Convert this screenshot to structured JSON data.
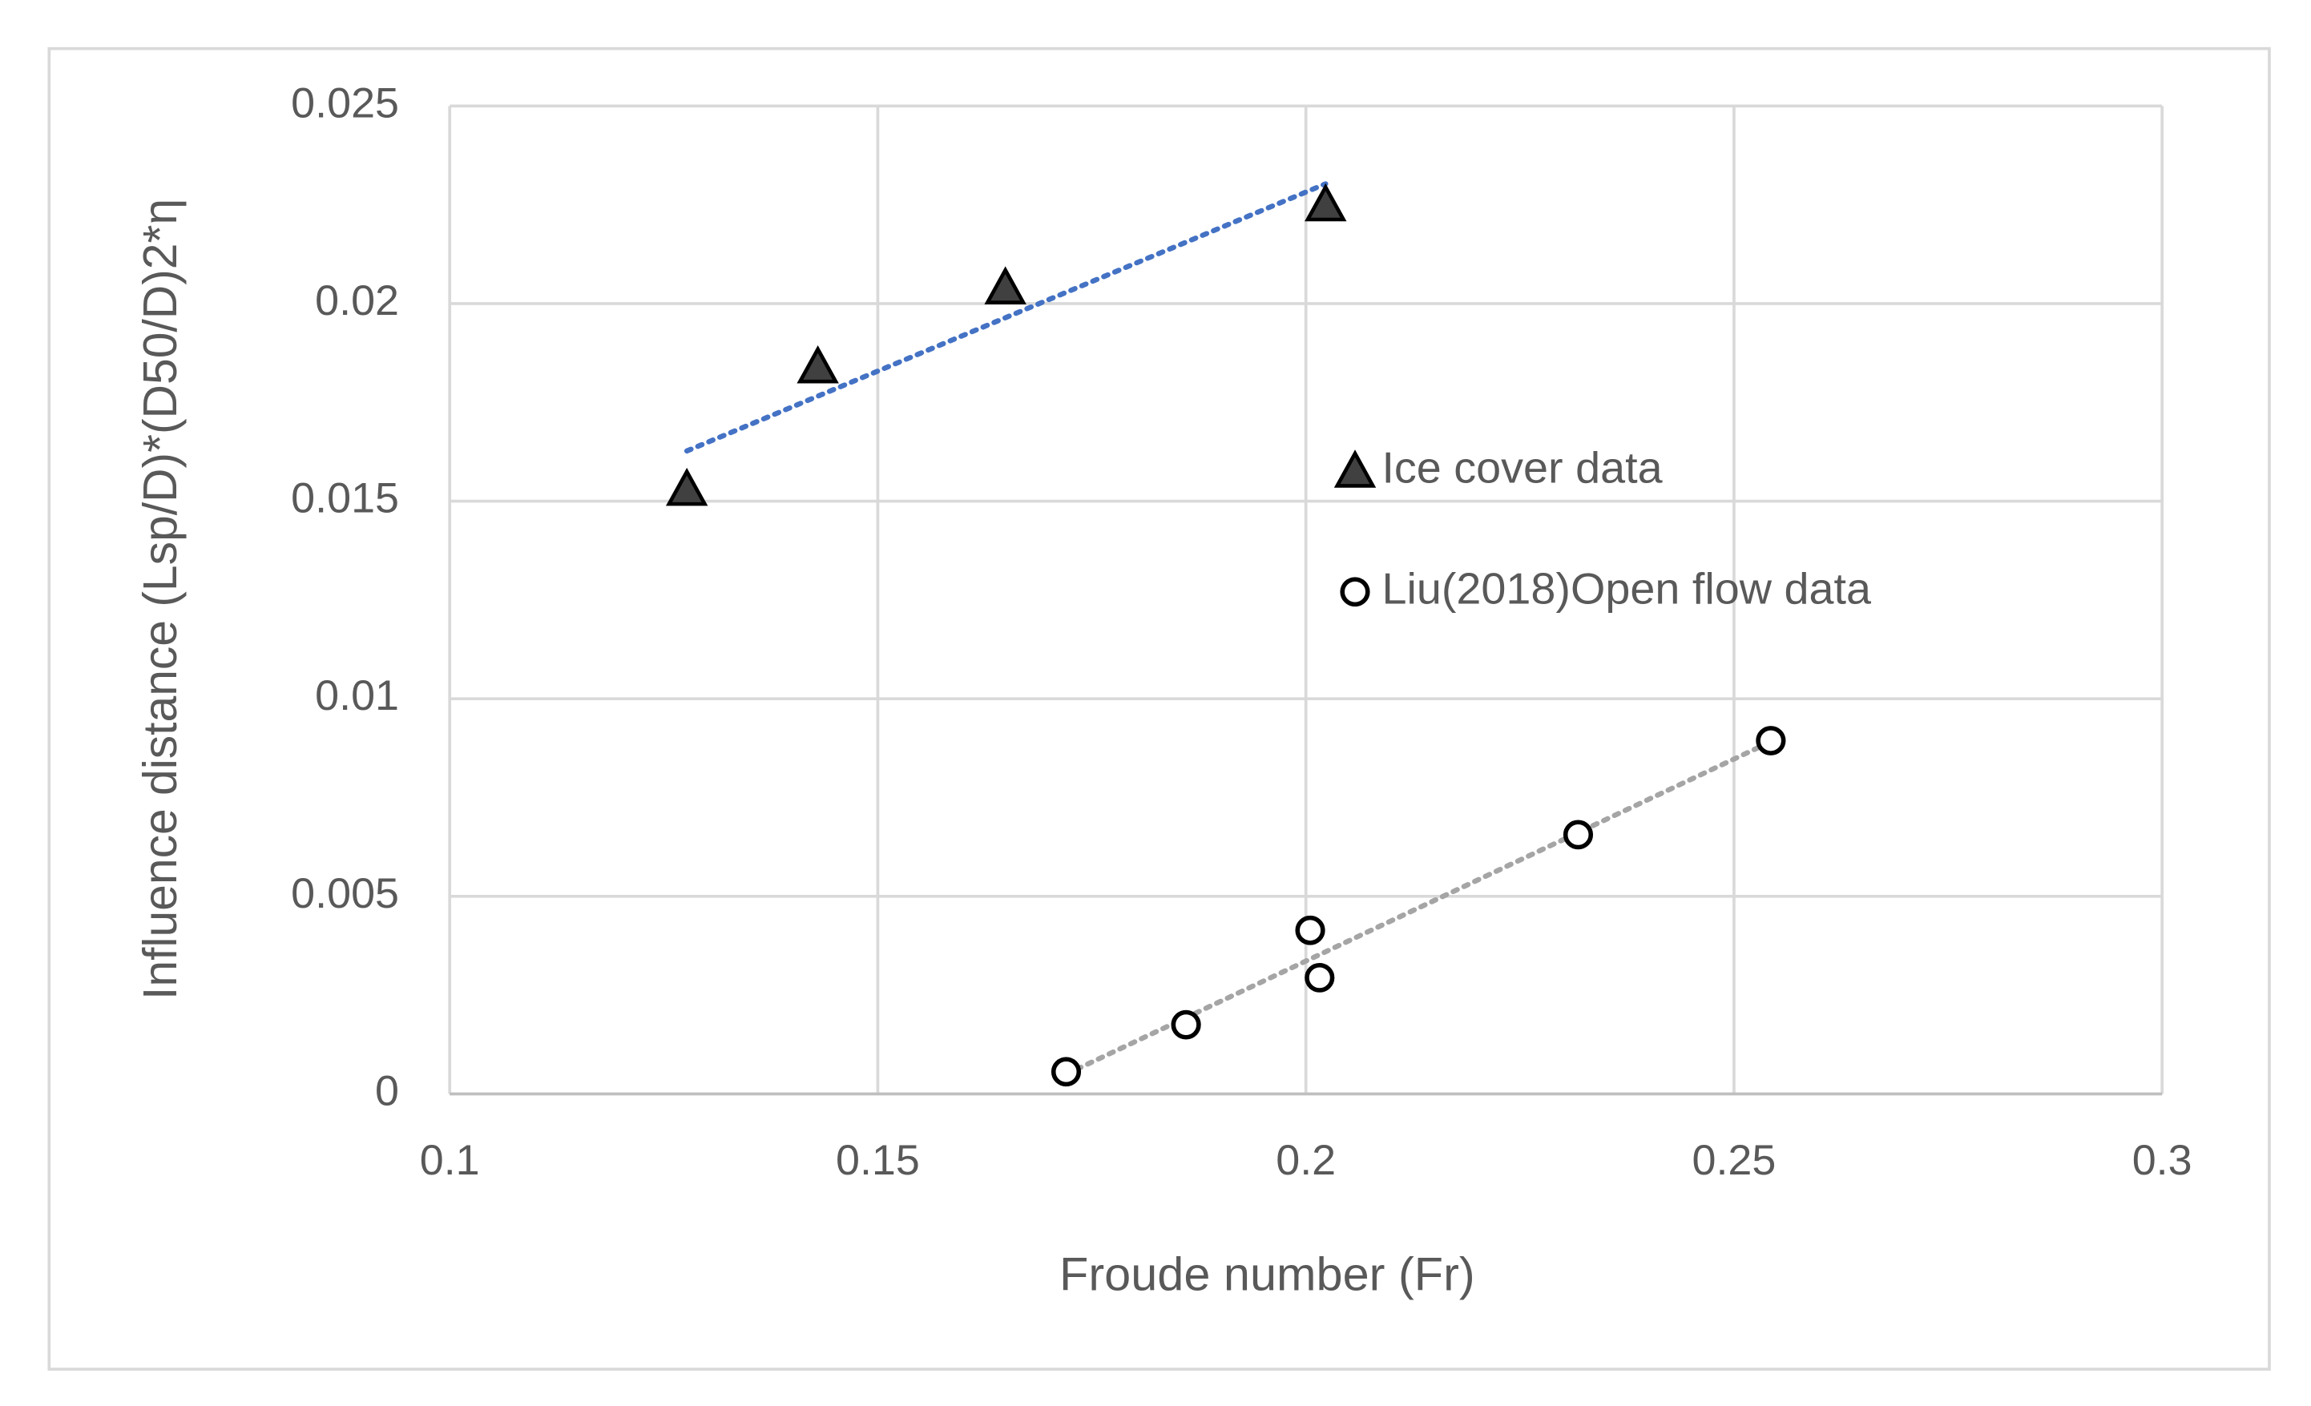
{
  "chart_data": {
    "type": "scatter",
    "x_label": "Froude number (Fr)",
    "y_label": "Influence distance (Lsp/D)*(D50/D)2*η",
    "xlim": [
      0.1,
      0.3
    ],
    "xticks": [
      0.1,
      0.15,
      0.2,
      0.25,
      0.3
    ],
    "ylim": [
      0,
      0.025
    ],
    "yticks": [
      0,
      0.005,
      0.01,
      0.015,
      0.02,
      0.025
    ],
    "grid": true,
    "legend": "center-right",
    "series": [
      {
        "name": "Ice cover data",
        "marker": "triangle",
        "color": "#404040",
        "trendline": "linear",
        "trendline_color": "#4472c4",
        "x": [
          0.1277,
          0.143,
          0.1649,
          0.2023
        ],
        "values": [
          0.0153,
          0.0184,
          0.0204,
          0.0225
        ]
      },
      {
        "name": "Liu(2018)Open flow data",
        "marker": "circle",
        "color": "#000000",
        "trendline": "linear",
        "trendline_color": "#a5a5a5",
        "x": [
          0.172,
          0.186,
          0.2005,
          0.2016,
          0.2318,
          0.2543
        ],
        "values": [
          0.00056,
          0.00175,
          0.00414,
          0.00294,
          0.00656,
          0.00894
        ]
      }
    ]
  }
}
